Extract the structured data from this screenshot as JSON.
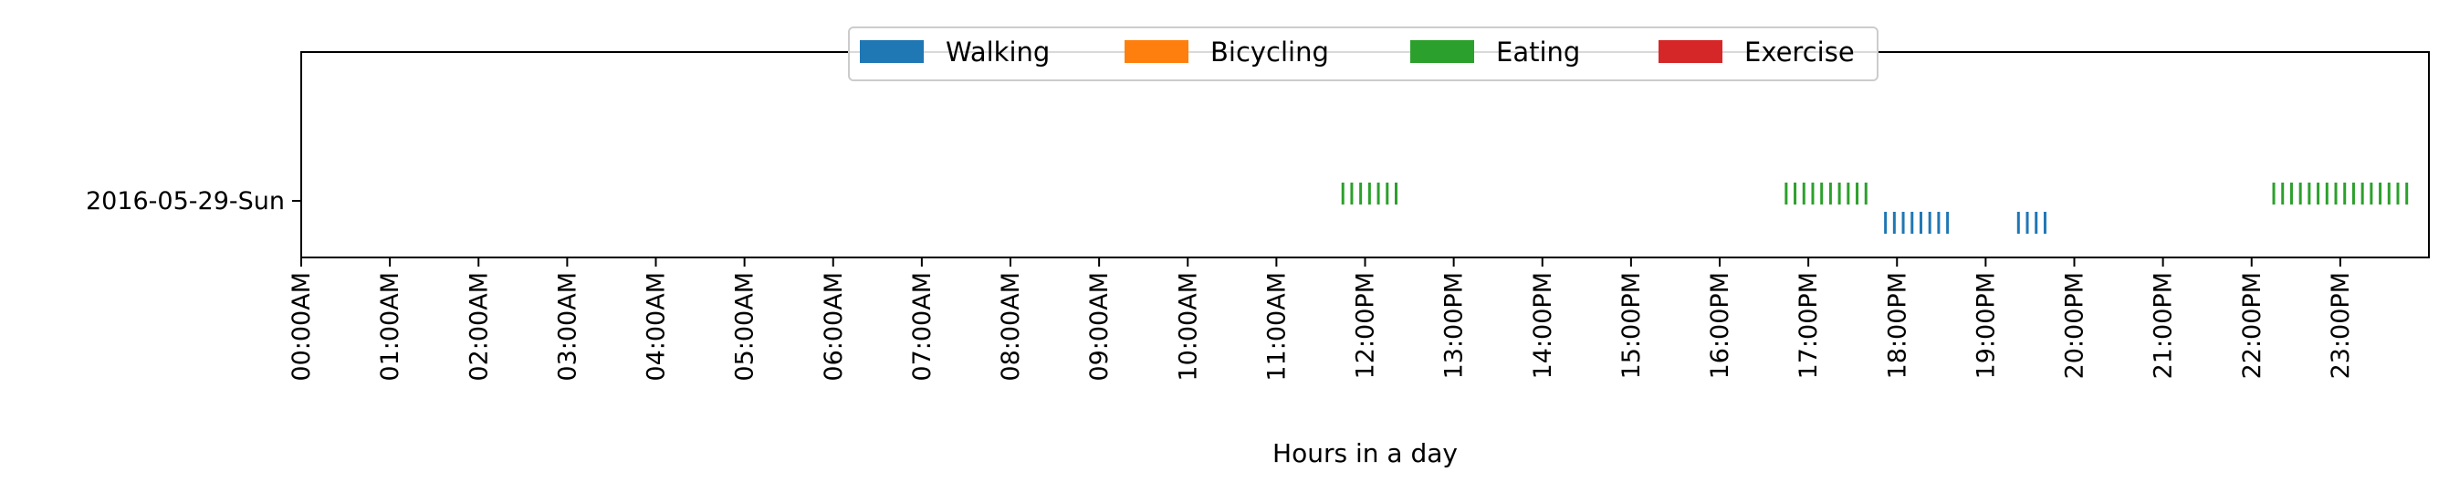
{
  "chart_data": {
    "type": "timeline",
    "xlabel": "Hours in a day",
    "ylabel": "",
    "xlim": [
      0,
      24
    ],
    "x_unit": "hours",
    "grid": false,
    "legend_position": "top-center",
    "y_categories": [
      "2016-05-29-Sun"
    ],
    "x_tick_labels": [
      "00:00AM",
      "01:00AM",
      "02:00AM",
      "03:00AM",
      "04:00AM",
      "05:00AM",
      "06:00AM",
      "07:00AM",
      "08:00AM",
      "09:00AM",
      "10:00AM",
      "11:00AM",
      "12:00PM",
      "13:00PM",
      "14:00PM",
      "15:00PM",
      "16:00PM",
      "17:00PM",
      "18:00PM",
      "19:00PM",
      "20:00PM",
      "21:00PM",
      "22:00PM",
      "23:00PM"
    ],
    "series": [
      {
        "name": "Walking",
        "color": "#1f77b4",
        "events": [
          17.87,
          17.97,
          18.07,
          18.17,
          18.27,
          18.37,
          18.47,
          18.57,
          19.37,
          19.47,
          19.57,
          19.67
        ]
      },
      {
        "name": "Bicycling",
        "color": "#ff7f0e",
        "events": []
      },
      {
        "name": "Eating",
        "color": "#2ca02c",
        "events": [
          11.75,
          11.85,
          11.95,
          12.05,
          12.15,
          12.25,
          12.35,
          16.75,
          16.85,
          16.95,
          17.05,
          17.15,
          17.25,
          17.35,
          17.45,
          17.55,
          17.65,
          22.25,
          22.35,
          22.45,
          22.55,
          22.65,
          22.75,
          22.85,
          22.95,
          23.05,
          23.15,
          23.25,
          23.35,
          23.45,
          23.55,
          23.65,
          23.75
        ]
      },
      {
        "name": "Exercise",
        "color": "#d62728",
        "events": []
      }
    ]
  }
}
